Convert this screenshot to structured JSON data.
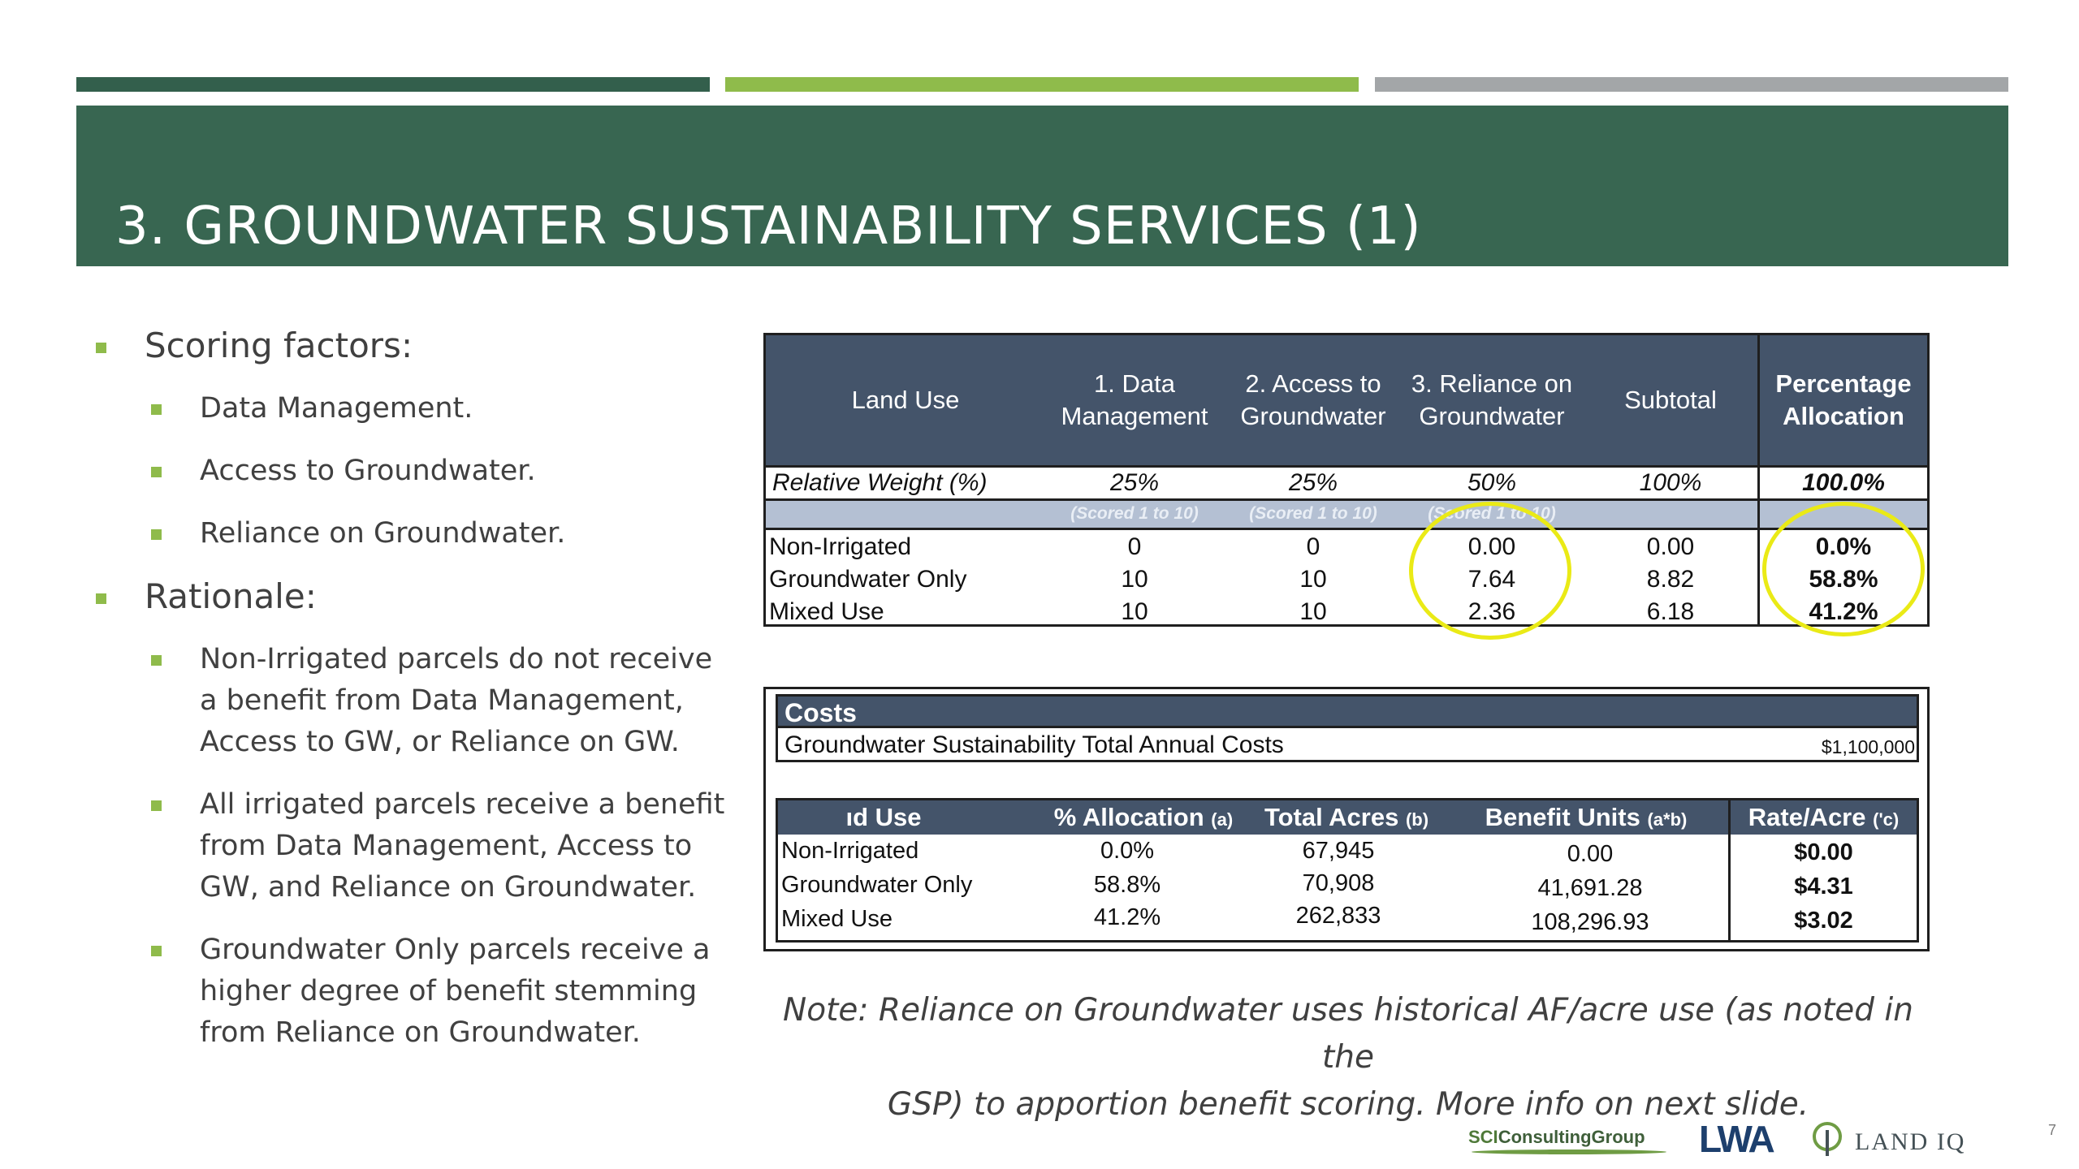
{
  "slide": {
    "title": "3. GROUNDWATER SUSTAINABILITY SERVICES (1)",
    "page_number": "7"
  },
  "bullets": {
    "scoring_label": "Scoring factors:",
    "factors": [
      "Data Management.",
      "Access to Groundwater.",
      "Reliance on Groundwater."
    ],
    "rationale_label": "Rationale:",
    "rationale_items": [
      [
        "Non-Irrigated parcels do not receive",
        "a benefit from Data Management,",
        "Access to GW, or Reliance on GW."
      ],
      [
        "All irrigated parcels receive a benefit",
        "from Data Management, Access to",
        "GW, and Reliance on Groundwater."
      ],
      [
        "Groundwater Only parcels receive a",
        "higher degree of benefit stemming",
        "from Reliance on Groundwater."
      ]
    ]
  },
  "scoring_table": {
    "headers": {
      "land_use": "Land Use",
      "col1": [
        "1. Data",
        "Management"
      ],
      "col2": [
        "2. Access to",
        "Groundwater"
      ],
      "col3": [
        "3. Reliance on",
        "Groundwater"
      ],
      "subtotal": "Subtotal",
      "pct": [
        "Percentage",
        "Allocation"
      ]
    },
    "weight_row": {
      "label": "Relative Weight (%)",
      "values": [
        "25%",
        "25%",
        "50%",
        "100%",
        "100.0%"
      ]
    },
    "scored_note": "(Scored 1 to 10)",
    "rows": [
      {
        "land_use": "Non-Irrigated",
        "data_mgmt": "0",
        "access": "0",
        "reliance": "0.00",
        "subtotal": "0.00",
        "pct": "0.0%"
      },
      {
        "land_use": "Groundwater Only",
        "data_mgmt": "10",
        "access": "10",
        "reliance": "7.64",
        "subtotal": "8.82",
        "pct": "58.8%"
      },
      {
        "land_use": "Mixed Use",
        "data_mgmt": "10",
        "access": "10",
        "reliance": "2.36",
        "subtotal": "6.18",
        "pct": "41.2%"
      }
    ],
    "highlight_color": "#eaea16"
  },
  "cost_table": {
    "costs_label": "Costs",
    "total_label": "Groundwater Sustainability Total Annual Costs",
    "total_value": "$1,100,000",
    "headers": {
      "land_use": "ıd Use",
      "allocation": "% Allocation",
      "allocation_tag": "(a)",
      "acres": "Total Acres",
      "acres_tag": "(b)",
      "units": "Benefit Units",
      "units_tag": "(a*b)",
      "rate": "Rate/Acre",
      "rate_tag": "('c)"
    },
    "rows": [
      {
        "land_use": "Non-Irrigated",
        "allocation": "0.0%",
        "acres": "67,945",
        "units": "0.00",
        "rate": "$0.00"
      },
      {
        "land_use": "Groundwater Only",
        "allocation": "58.8%",
        "acres": "70,908",
        "units": "41,691.28",
        "rate": "$4.31"
      },
      {
        "land_use": "Mixed Use",
        "allocation": "41.2%",
        "acres": "262,833",
        "units": "108,296.93",
        "rate": "$3.02"
      }
    ]
  },
  "note": {
    "line1": "Note: Reliance on Groundwater uses historical AF/acre use (as noted in the",
    "line2": "GSP) to apportion benefit scoring. More info on next slide."
  },
  "logos": {
    "sci_a": "SCI",
    "sci_b": "ConsultingGroup",
    "lwa": "LWA",
    "landiq": "LAND IQ"
  },
  "colors": {
    "title_band": "#386651",
    "accent_green": "#8fbb4b",
    "table_header": "#44546a"
  }
}
